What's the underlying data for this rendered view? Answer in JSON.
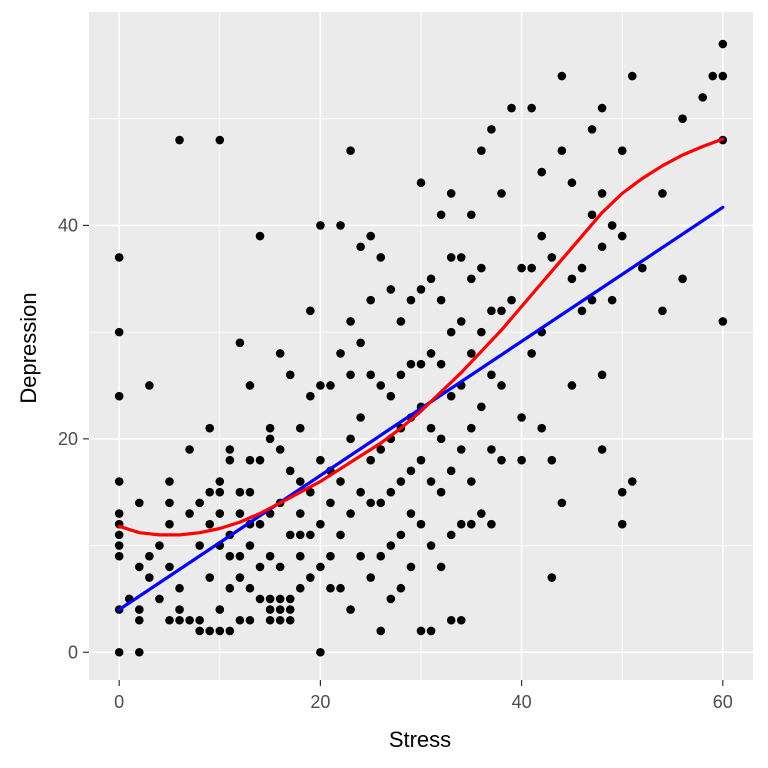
{
  "chart_data": {
    "type": "scatter",
    "xlabel": "Stress",
    "ylabel": "Depression",
    "xlim": [
      -3,
      63
    ],
    "ylim": [
      -2.6,
      60
    ],
    "x_ticks": [
      0,
      20,
      40,
      60
    ],
    "y_ticks": [
      0,
      20,
      40
    ],
    "x_tick_labels": [
      "0",
      "20",
      "40",
      "60"
    ],
    "y_tick_labels": [
      "0",
      "20",
      "40"
    ],
    "grid": true,
    "colors": {
      "panel": "#EBEBEB",
      "grid": "#FFFFFF",
      "points": "#000000",
      "linear_fit": "#0000FF",
      "smooth_fit": "#FF0000"
    },
    "points": [
      [
        0,
        37
      ],
      [
        0,
        30
      ],
      [
        0,
        24
      ],
      [
        0,
        16
      ],
      [
        0,
        13
      ],
      [
        0,
        12
      ],
      [
        0,
        11
      ],
      [
        0,
        10
      ],
      [
        0,
        9
      ],
      [
        0,
        4
      ],
      [
        0,
        0
      ],
      [
        1,
        5
      ],
      [
        2,
        14
      ],
      [
        2,
        8
      ],
      [
        2,
        4
      ],
      [
        2,
        3
      ],
      [
        2,
        0
      ],
      [
        3,
        25
      ],
      [
        3,
        9
      ],
      [
        3,
        7
      ],
      [
        4,
        10
      ],
      [
        4,
        5
      ],
      [
        5,
        16
      ],
      [
        5,
        14
      ],
      [
        5,
        12
      ],
      [
        5,
        8
      ],
      [
        5,
        3
      ],
      [
        6,
        48
      ],
      [
        6,
        6
      ],
      [
        6,
        4
      ],
      [
        6,
        3
      ],
      [
        7,
        19
      ],
      [
        7,
        13
      ],
      [
        7,
        3
      ],
      [
        8,
        14
      ],
      [
        8,
        10
      ],
      [
        8,
        3
      ],
      [
        8,
        2
      ],
      [
        9,
        21
      ],
      [
        9,
        15
      ],
      [
        9,
        12
      ],
      [
        9,
        7
      ],
      [
        9,
        2
      ],
      [
        10,
        48
      ],
      [
        10,
        16
      ],
      [
        10,
        15
      ],
      [
        10,
        13
      ],
      [
        10,
        10
      ],
      [
        10,
        4
      ],
      [
        10,
        2
      ],
      [
        11,
        19
      ],
      [
        11,
        18
      ],
      [
        11,
        11
      ],
      [
        11,
        9
      ],
      [
        11,
        6
      ],
      [
        11,
        2
      ],
      [
        12,
        29
      ],
      [
        12,
        15
      ],
      [
        12,
        13
      ],
      [
        12,
        9
      ],
      [
        12,
        7
      ],
      [
        12,
        3
      ],
      [
        13,
        25
      ],
      [
        13,
        18
      ],
      [
        13,
        15
      ],
      [
        13,
        12
      ],
      [
        13,
        10
      ],
      [
        13,
        6
      ],
      [
        13,
        3
      ],
      [
        14,
        39
      ],
      [
        14,
        18
      ],
      [
        14,
        12
      ],
      [
        14,
        8
      ],
      [
        14,
        5
      ],
      [
        15,
        21
      ],
      [
        15,
        20
      ],
      [
        15,
        13
      ],
      [
        15,
        9
      ],
      [
        15,
        5
      ],
      [
        15,
        4
      ],
      [
        15,
        3
      ],
      [
        16,
        28
      ],
      [
        16,
        19
      ],
      [
        16,
        14
      ],
      [
        16,
        8
      ],
      [
        16,
        5
      ],
      [
        16,
        4
      ],
      [
        16,
        3
      ],
      [
        17,
        26
      ],
      [
        17,
        17
      ],
      [
        17,
        11
      ],
      [
        17,
        5
      ],
      [
        17,
        4
      ],
      [
        17,
        3
      ],
      [
        18,
        21
      ],
      [
        18,
        16
      ],
      [
        18,
        13
      ],
      [
        18,
        11
      ],
      [
        18,
        9
      ],
      [
        18,
        6
      ],
      [
        19,
        32
      ],
      [
        19,
        24
      ],
      [
        19,
        15
      ],
      [
        19,
        11
      ],
      [
        19,
        7
      ],
      [
        20,
        40
      ],
      [
        20,
        25
      ],
      [
        20,
        18
      ],
      [
        20,
        12
      ],
      [
        20,
        8
      ],
      [
        20,
        0
      ],
      [
        21,
        25
      ],
      [
        21,
        17
      ],
      [
        21,
        14
      ],
      [
        21,
        9
      ],
      [
        21,
        6
      ],
      [
        22,
        40
      ],
      [
        22,
        28
      ],
      [
        22,
        16
      ],
      [
        22,
        11
      ],
      [
        22,
        6
      ],
      [
        23,
        47
      ],
      [
        23,
        31
      ],
      [
        23,
        26
      ],
      [
        23,
        20
      ],
      [
        23,
        13
      ],
      [
        23,
        4
      ],
      [
        24,
        38
      ],
      [
        24,
        29
      ],
      [
        24,
        22
      ],
      [
        24,
        15
      ],
      [
        24,
        9
      ],
      [
        25,
        39
      ],
      [
        25,
        33
      ],
      [
        25,
        26
      ],
      [
        25,
        18
      ],
      [
        25,
        14
      ],
      [
        25,
        7
      ],
      [
        26,
        37
      ],
      [
        26,
        25
      ],
      [
        26,
        19
      ],
      [
        26,
        14
      ],
      [
        26,
        9
      ],
      [
        26,
        2
      ],
      [
        27,
        34
      ],
      [
        27,
        24
      ],
      [
        27,
        20
      ],
      [
        27,
        15
      ],
      [
        27,
        10
      ],
      [
        27,
        5
      ],
      [
        28,
        31
      ],
      [
        28,
        26
      ],
      [
        28,
        21
      ],
      [
        28,
        16
      ],
      [
        28,
        11
      ],
      [
        28,
        6
      ],
      [
        29,
        33
      ],
      [
        29,
        27
      ],
      [
        29,
        22
      ],
      [
        29,
        17
      ],
      [
        29,
        13
      ],
      [
        29,
        8
      ],
      [
        30,
        44
      ],
      [
        30,
        34
      ],
      [
        30,
        27
      ],
      [
        30,
        23
      ],
      [
        30,
        18
      ],
      [
        30,
        12
      ],
      [
        30,
        2
      ],
      [
        31,
        35
      ],
      [
        31,
        28
      ],
      [
        31,
        21
      ],
      [
        31,
        16
      ],
      [
        31,
        10
      ],
      [
        31,
        2
      ],
      [
        32,
        41
      ],
      [
        32,
        33
      ],
      [
        32,
        27
      ],
      [
        32,
        20
      ],
      [
        32,
        15
      ],
      [
        32,
        8
      ],
      [
        33,
        43
      ],
      [
        33,
        37
      ],
      [
        33,
        30
      ],
      [
        33,
        24
      ],
      [
        33,
        17
      ],
      [
        33,
        11
      ],
      [
        33,
        3
      ],
      [
        34,
        37
      ],
      [
        34,
        31
      ],
      [
        34,
        25
      ],
      [
        34,
        19
      ],
      [
        34,
        12
      ],
      [
        34,
        3
      ],
      [
        35,
        41
      ],
      [
        35,
        35
      ],
      [
        35,
        28
      ],
      [
        35,
        21
      ],
      [
        35,
        16
      ],
      [
        35,
        12
      ],
      [
        36,
        47
      ],
      [
        36,
        36
      ],
      [
        36,
        30
      ],
      [
        36,
        23
      ],
      [
        36,
        13
      ],
      [
        37,
        49
      ],
      [
        37,
        32
      ],
      [
        37,
        26
      ],
      [
        37,
        19
      ],
      [
        37,
        12
      ],
      [
        38,
        43
      ],
      [
        38,
        32
      ],
      [
        38,
        25
      ],
      [
        38,
        18
      ],
      [
        39,
        51
      ],
      [
        39,
        33
      ],
      [
        40,
        36
      ],
      [
        40,
        22
      ],
      [
        40,
        18
      ],
      [
        41,
        51
      ],
      [
        41,
        36
      ],
      [
        41,
        28
      ],
      [
        42,
        45
      ],
      [
        42,
        39
      ],
      [
        42,
        30
      ],
      [
        42,
        21
      ],
      [
        43,
        37
      ],
      [
        43,
        18
      ],
      [
        43,
        7
      ],
      [
        44,
        54
      ],
      [
        44,
        47
      ],
      [
        44,
        14
      ],
      [
        45,
        44
      ],
      [
        45,
        35
      ],
      [
        45,
        25
      ],
      [
        46,
        36
      ],
      [
        46,
        32
      ],
      [
        47,
        49
      ],
      [
        47,
        41
      ],
      [
        47,
        33
      ],
      [
        48,
        51
      ],
      [
        48,
        43
      ],
      [
        48,
        38
      ],
      [
        48,
        26
      ],
      [
        48,
        19
      ],
      [
        49,
        40
      ],
      [
        49,
        33
      ],
      [
        50,
        47
      ],
      [
        50,
        39
      ],
      [
        50,
        15
      ],
      [
        50,
        12
      ],
      [
        51,
        54
      ],
      [
        51,
        16
      ],
      [
        52,
        36
      ],
      [
        54,
        43
      ],
      [
        54,
        32
      ],
      [
        56,
        50
      ],
      [
        56,
        35
      ],
      [
        58,
        52
      ],
      [
        59,
        54
      ],
      [
        60,
        57
      ],
      [
        60,
        54
      ],
      [
        60,
        48
      ],
      [
        60,
        31
      ]
    ],
    "linear_fit": [
      [
        0,
        4.0
      ],
      [
        60,
        41.7
      ]
    ],
    "smooth_fit": [
      [
        0,
        11.8
      ],
      [
        2,
        11.2
      ],
      [
        4,
        11.0
      ],
      [
        6,
        11.0
      ],
      [
        8,
        11.2
      ],
      [
        10,
        11.6
      ],
      [
        12,
        12.2
      ],
      [
        14,
        13.0
      ],
      [
        16,
        14.0
      ],
      [
        18,
        15.0
      ],
      [
        20,
        16.0
      ],
      [
        22,
        17.2
      ],
      [
        24,
        18.4
      ],
      [
        26,
        19.6
      ],
      [
        28,
        21.0
      ],
      [
        30,
        22.6
      ],
      [
        32,
        24.4
      ],
      [
        34,
        26.2
      ],
      [
        36,
        28.2
      ],
      [
        38,
        30.2
      ],
      [
        40,
        32.4
      ],
      [
        42,
        34.6
      ],
      [
        44,
        36.8
      ],
      [
        46,
        39.0
      ],
      [
        48,
        41.2
      ],
      [
        50,
        43.0
      ],
      [
        52,
        44.4
      ],
      [
        54,
        45.6
      ],
      [
        56,
        46.6
      ],
      [
        58,
        47.4
      ],
      [
        60,
        48.1
      ]
    ]
  }
}
